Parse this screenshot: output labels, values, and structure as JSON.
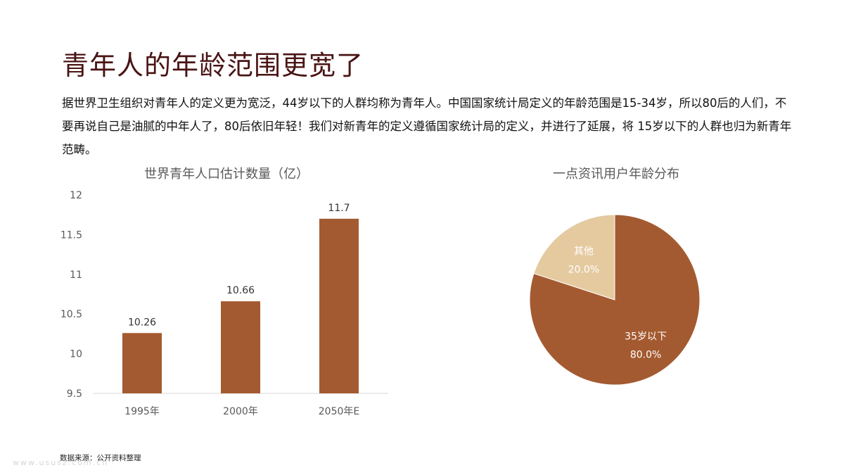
{
  "slide": {
    "title": "青年人的年龄范围更宽了",
    "description": "据世界卫生组织对青年人的定义更为宽泛，44岁以下的人群均称为青年人。中国国家统计局定义的年龄范围是15-34岁，所以80后的人们，不要再说自己是油腻的中年人了，80后依旧年轻！我们对新青年的定义遵循国家统计局的定义，并进行了延展，将 15岁以下的人群也归为新青年范畴。",
    "source": "数据来源：公开资料整理",
    "watermark": "www.ususz.com.cn"
  },
  "chart_data": [
    {
      "type": "bar",
      "title": "世界青年人口估计数量（亿）",
      "categories": [
        "1995年",
        "2000年",
        "2050年E"
      ],
      "values": [
        10.26,
        10.66,
        11.7
      ],
      "data_labels": [
        "10.26",
        "10.66",
        "11.7"
      ],
      "ylim": [
        9.5,
        12
      ],
      "yticks": [
        9.5,
        10,
        10.5,
        11,
        11.5,
        12
      ],
      "ytick_labels": [
        "9.5",
        "10",
        "10.5",
        "11",
        "11.5",
        "12"
      ],
      "xlabel": "",
      "ylabel": "",
      "grid": false,
      "color": "#a45a30"
    },
    {
      "type": "pie",
      "title": "一点资讯用户年龄分布",
      "slices": [
        {
          "label": "35岁以下",
          "value": 80.0,
          "percent_label": "80.0%",
          "color": "#a45a30"
        },
        {
          "label": "其他",
          "value": 20.0,
          "percent_label": "20.0%",
          "color": "#e5caa0"
        }
      ],
      "start_angle_deg": 0,
      "direction": "clockwise"
    }
  ]
}
